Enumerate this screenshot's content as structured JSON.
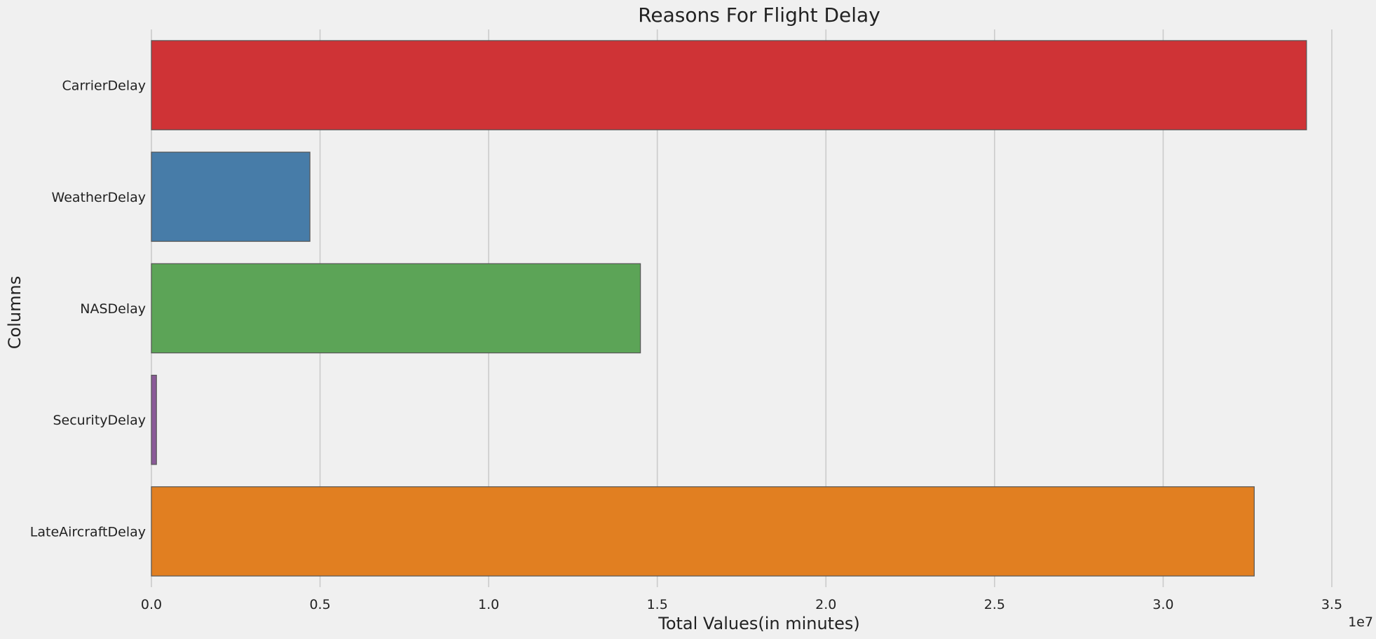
{
  "chart_data": {
    "type": "bar",
    "orientation": "horizontal",
    "title": "Reasons For Flight Delay",
    "xlabel": "Total Values(in minutes)",
    "ylabel": "Columns",
    "x_scale_note": "1e7",
    "xlim": [
      0,
      35500000
    ],
    "xticks": [
      0,
      5000000,
      10000000,
      15000000,
      20000000,
      25000000,
      30000000,
      35000000
    ],
    "xtick_labels": [
      "0.0",
      "0.5",
      "1.0",
      "1.5",
      "2.0",
      "2.5",
      "3.0",
      "3.5"
    ],
    "grid": "vertical",
    "categories": [
      "CarrierDelay",
      "WeatherDelay",
      "NASDelay",
      "SecurityDelay",
      "LateAircraftDelay"
    ],
    "values": [
      34250000,
      4700000,
      14500000,
      150000,
      32700000
    ],
    "colors": [
      "#cf3336",
      "#477ca8",
      "#5ca457",
      "#8a5a98",
      "#e17f21"
    ],
    "background": "#f0f0f0",
    "grid_color": "#cbcbcb"
  }
}
